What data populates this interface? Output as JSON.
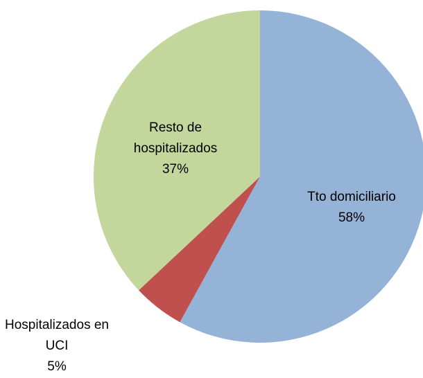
{
  "chart_data": {
    "type": "pie",
    "categories": [
      "Tto domiciliario",
      "Hospitalizados en UCI",
      "Resto de hospitalizados"
    ],
    "values": [
      58,
      5,
      37
    ],
    "value_labels": [
      "58%",
      "5%",
      "37%"
    ],
    "colors": [
      "#95b3d7",
      "#c0504d",
      "#c3d69b"
    ]
  }
}
